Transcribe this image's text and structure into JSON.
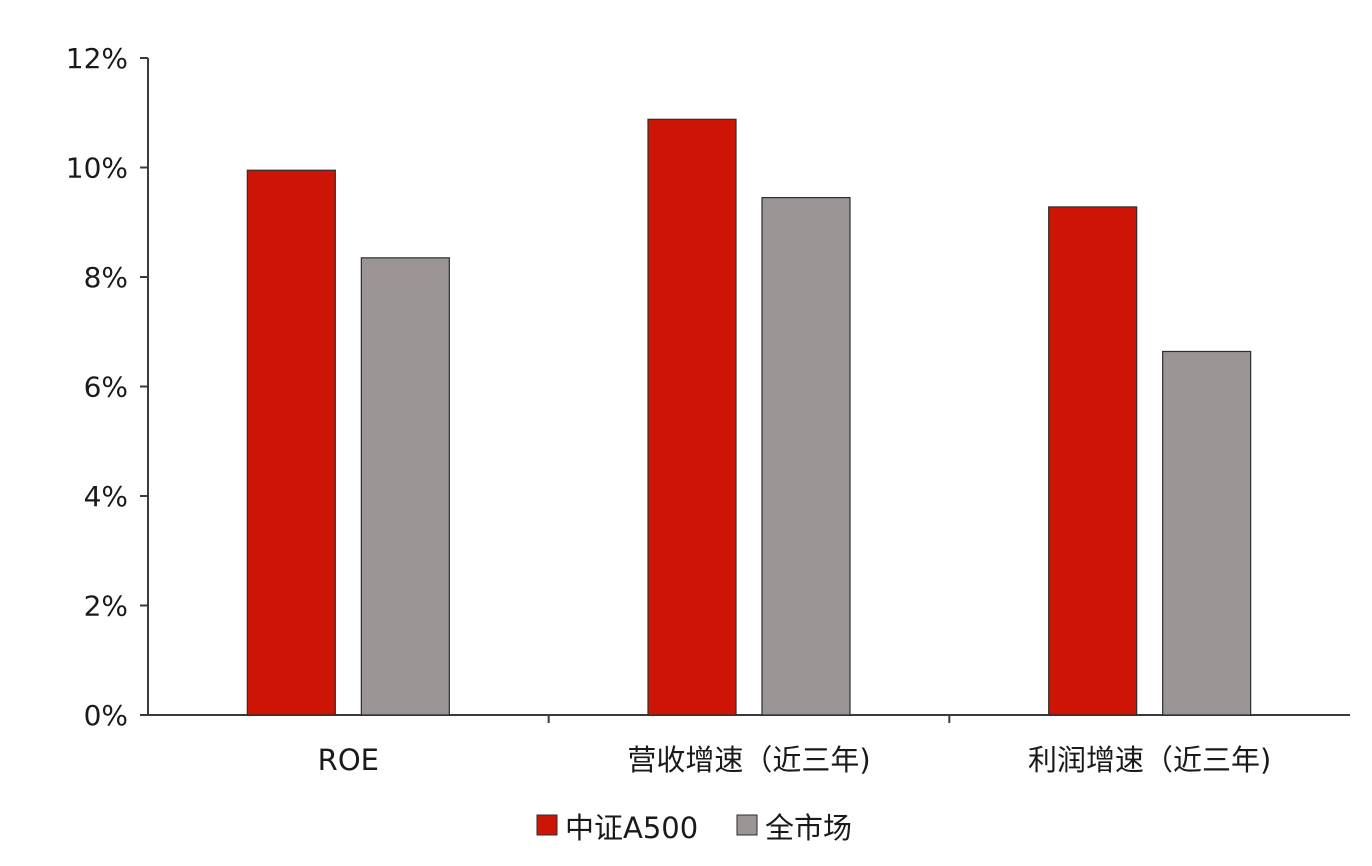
{
  "chart_data": {
    "type": "bar",
    "categories": [
      "ROE",
      "营收增速（近三年)",
      "利润增速（近三年)"
    ],
    "series": [
      {
        "name": "中证A500",
        "values": [
          9.95,
          10.88,
          9.28
        ],
        "color": "#cc1505"
      },
      {
        "name": "全市场",
        "values": [
          8.35,
          9.45,
          6.64
        ],
        "color": "#9a9495"
      }
    ],
    "ylim": [
      0,
      12
    ],
    "yticks": [
      0,
      2,
      4,
      6,
      8,
      10,
      12
    ],
    "ytick_labels": [
      "0%",
      "2%",
      "4%",
      "6%",
      "8%",
      "10%",
      "12%"
    ],
    "legend_position": "bottom",
    "grid": false
  }
}
